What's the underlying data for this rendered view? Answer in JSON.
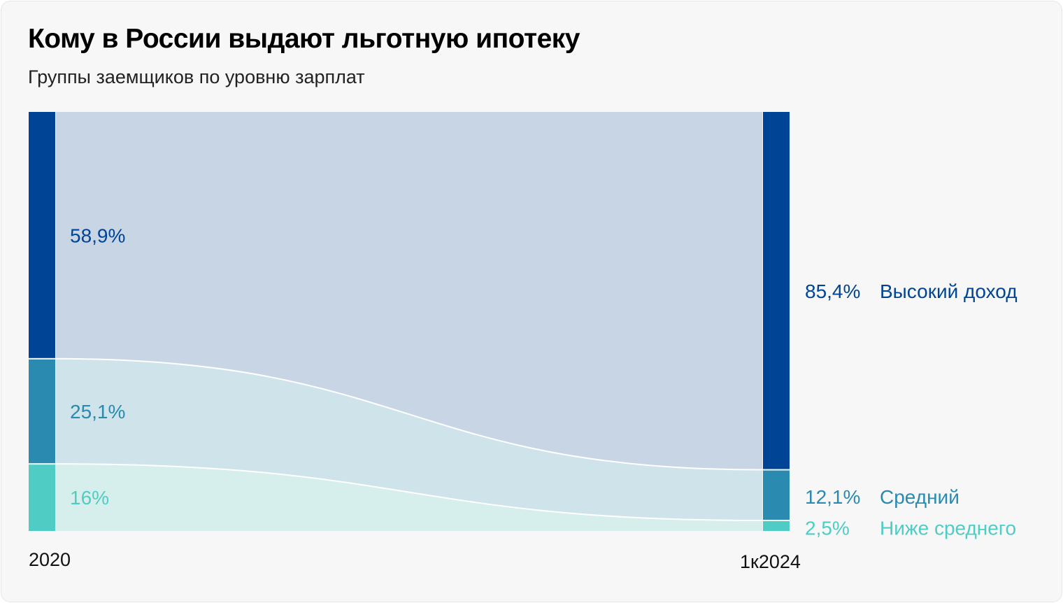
{
  "title": "Кому в России выдают льготную ипотеку",
  "subtitle": "Группы заемщиков по уровню зарплат",
  "chart_data": {
    "type": "sankey",
    "periods": [
      "2020",
      "1к2024"
    ],
    "groups": [
      {
        "name": "Высокий доход",
        "start_label": "58,9%",
        "end_label": "85,4%",
        "start": 58.9,
        "end": 85.4,
        "color": "#004595",
        "flow_color": "#c7d5e5"
      },
      {
        "name": "Средний",
        "start_label": "25,1%",
        "end_label": "12,1%",
        "start": 25.1,
        "end": 12.1,
        "color": "#2a8ab0",
        "flow_color": "#cfe3ea"
      },
      {
        "name": "Ниже среднего",
        "start_label": "16%",
        "end_label": "2,5%",
        "start": 16,
        "end": 2.5,
        "color": "#4fcdc4",
        "flow_color": "#d6efec"
      }
    ]
  }
}
